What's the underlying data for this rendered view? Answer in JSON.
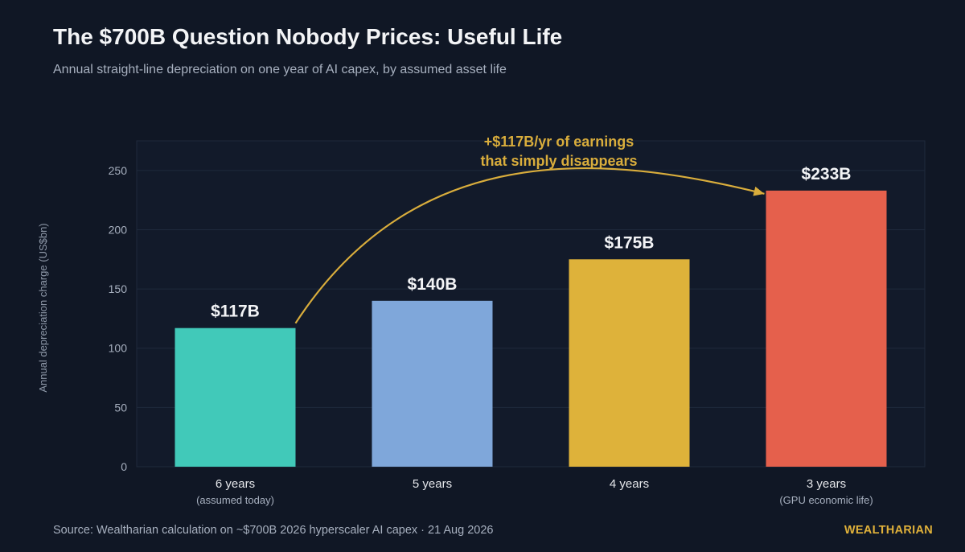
{
  "header": {
    "title": "The $700B Question Nobody Prices: Useful Life",
    "subtitle": "Annual straight-line depreciation on one year of AI capex, by assumed asset life"
  },
  "chart_data": {
    "type": "bar",
    "title": "",
    "xlabel": "",
    "ylabel": "Annual depreciation charge (US$bn)",
    "ylim": [
      0,
      275
    ],
    "yticks": [
      0,
      50,
      100,
      150,
      200,
      250
    ],
    "grid": true,
    "categories": [
      "6 years",
      "5 years",
      "4 years",
      "3 years"
    ],
    "category_notes": [
      "(assumed today)",
      "",
      "",
      "(GPU economic life)"
    ],
    "values": [
      117,
      140,
      175,
      233
    ],
    "value_labels": [
      "$117B",
      "$140B",
      "$175B",
      "$233B"
    ],
    "colors": [
      "#41c9b9",
      "#7fa7da",
      "#deb23a",
      "#e5604c"
    ],
    "annotation": {
      "lines": [
        "+$117B/yr of earnings",
        "that simply disappears"
      ],
      "from_category": "6 years",
      "to_category": "3 years",
      "color": "#d9ad3c"
    }
  },
  "footer": {
    "source": "Source: Wealtharian calculation on ~$700B 2026 hyperscaler AI capex  ·  21 Aug 2026",
    "brand": "WEALTHARIAN"
  }
}
